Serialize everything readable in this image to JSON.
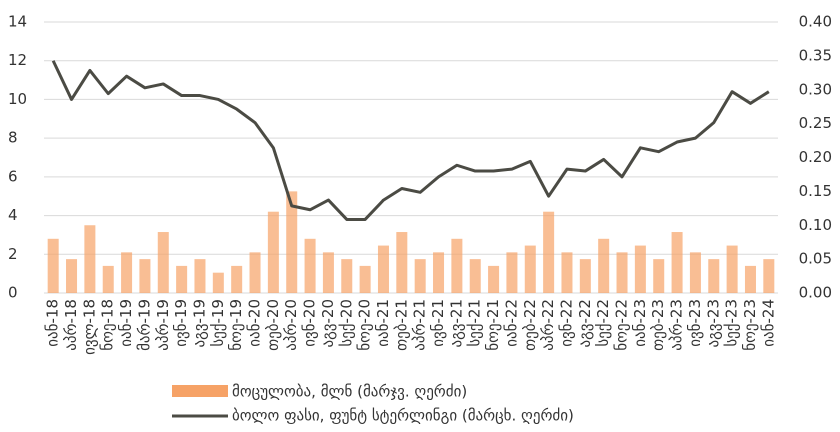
{
  "chart_data": {
    "type": "bar-line",
    "categories": [
      "იან-18",
      "აპრ-18",
      "ივლ-18",
      "ნოე-18",
      "იან-19",
      "მარ-19",
      "აპრ-19",
      "ივნ-19",
      "აგვ-19",
      "სექ-19",
      "ნოე-19",
      "იან-20",
      "თებ-20",
      "აპრ-20",
      "ივნ-20",
      "აგვ-20",
      "სექ-20",
      "ნოე-20",
      "იან-21",
      "თებ-21",
      "აპრ-21",
      "ივნ-21",
      "აგვ-21",
      "სექ-21",
      "ნოე-21",
      "იან-22",
      "თებ-22",
      "აპრ-22",
      "ივნ-22",
      "აგვ-22",
      "სექ-22",
      "ნოე-22",
      "იან-23",
      "თებ-23",
      "აპრ-23",
      "ივნ-23",
      "აგვ-23",
      "სექ-23",
      "ნოე-23",
      "იან-24"
    ],
    "series": [
      {
        "name": "მოცულობა, მლნ (მარჯვ. ღერძი)",
        "color": "#f6a266",
        "axis": "y2",
        "values": [
          0.08,
          0.05,
          0.1,
          0.04,
          0.06,
          0.05,
          0.09,
          0.04,
          0.05,
          0.03,
          0.04,
          0.06,
          0.12,
          0.15,
          0.08,
          0.06,
          0.05,
          0.04,
          0.07,
          0.09,
          0.05,
          0.06,
          0.08,
          0.05,
          0.04,
          0.06,
          0.07,
          0.12,
          0.06,
          0.05,
          0.08,
          0.06,
          0.07,
          0.05,
          0.09,
          0.06,
          0.05,
          0.07,
          0.04,
          0.05
        ]
      },
      {
        "name": "ბოლო ფასი, ფუნტ სტერლინგი (მარცხ. ღერძი)",
        "color": "#4b4b44",
        "values": [
          12,
          10,
          11.5,
          10.3,
          11.2,
          10.6,
          10.8,
          10.2,
          10.2,
          10,
          9.5,
          8.8,
          7.5,
          4.5,
          4.3,
          4.8,
          3.8,
          3.8,
          4.8,
          5.4,
          5.2,
          6,
          6.6,
          6.3,
          6.3,
          6.4,
          6.8,
          5,
          6.4,
          6.3,
          6.9,
          6,
          7.5,
          7.3,
          7.8,
          8,
          8.8,
          10.4,
          9.8,
          10.4
        ]
      }
    ],
    "ylim": [
      0,
      14
    ],
    "yticks": [
      0,
      2,
      4,
      6,
      8,
      10,
      12,
      14
    ],
    "y2lim": [
      0,
      0.4
    ],
    "y2ticks": [
      {
        "value": 0,
        "label": "0.00"
      },
      {
        "value": 0.05,
        "label": "0.05"
      },
      {
        "value": 0.1,
        "label": "0.10"
      },
      {
        "value": 0.15,
        "label": "0.15"
      },
      {
        "value": 0.2,
        "label": "0.20"
      },
      {
        "value": 0.25,
        "label": "0.25"
      },
      {
        "value": 0.3,
        "label": "0.30"
      },
      {
        "value": 0.35,
        "label": "0.35"
      },
      {
        "value": 0.4,
        "label": "0.40"
      }
    ],
    "grid": true
  }
}
